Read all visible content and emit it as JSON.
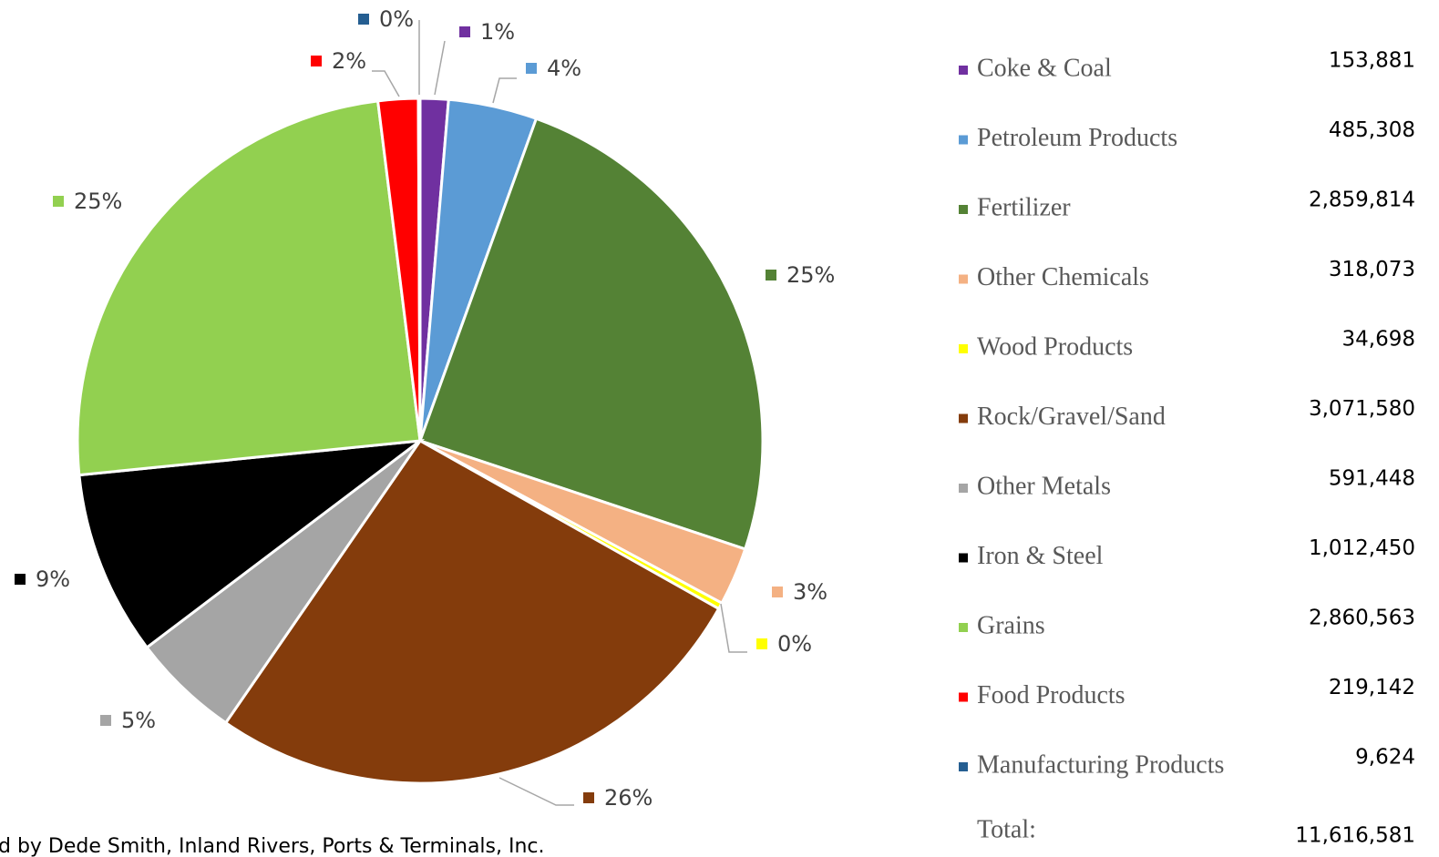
{
  "chart_data": {
    "type": "pie",
    "categories": [
      "Coke & Coal",
      "Petroleum Products",
      "Fertilizer",
      "Other Chemicals",
      "Wood Products",
      "Rock/Gravel/Sand",
      "Other Metals",
      "Iron & Steel",
      "Grains",
      "Food Products",
      "Manufacturing Products"
    ],
    "values": [
      153881,
      485308,
      2859814,
      318073,
      34698,
      3071580,
      591448,
      1012450,
      2860563,
      219142,
      9624
    ],
    "value_labels": [
      "153,881",
      "485,308",
      "2,859,814",
      "318,073",
      "34,698",
      "3,071,580",
      "591,448",
      "1,012,450",
      "2,860,563",
      "219,142",
      "9,624"
    ],
    "percent_labels": [
      "1%",
      "4%",
      "25%",
      "3%",
      "0%",
      "26%",
      "5%",
      "9%",
      "25%",
      "2%",
      "0%"
    ],
    "colors": [
      "#7030a0",
      "#5b9bd5",
      "#548235",
      "#f4b183",
      "#ffff00",
      "#843c0c",
      "#a5a5a5",
      "#000000",
      "#92d050",
      "#ff0000",
      "#255e91"
    ],
    "total": {
      "label": "Total:",
      "value": 11616581,
      "value_label": "11,616,581"
    },
    "source": "d by Dede Smith, Inland Rivers, Ports & Terminals, Inc."
  }
}
